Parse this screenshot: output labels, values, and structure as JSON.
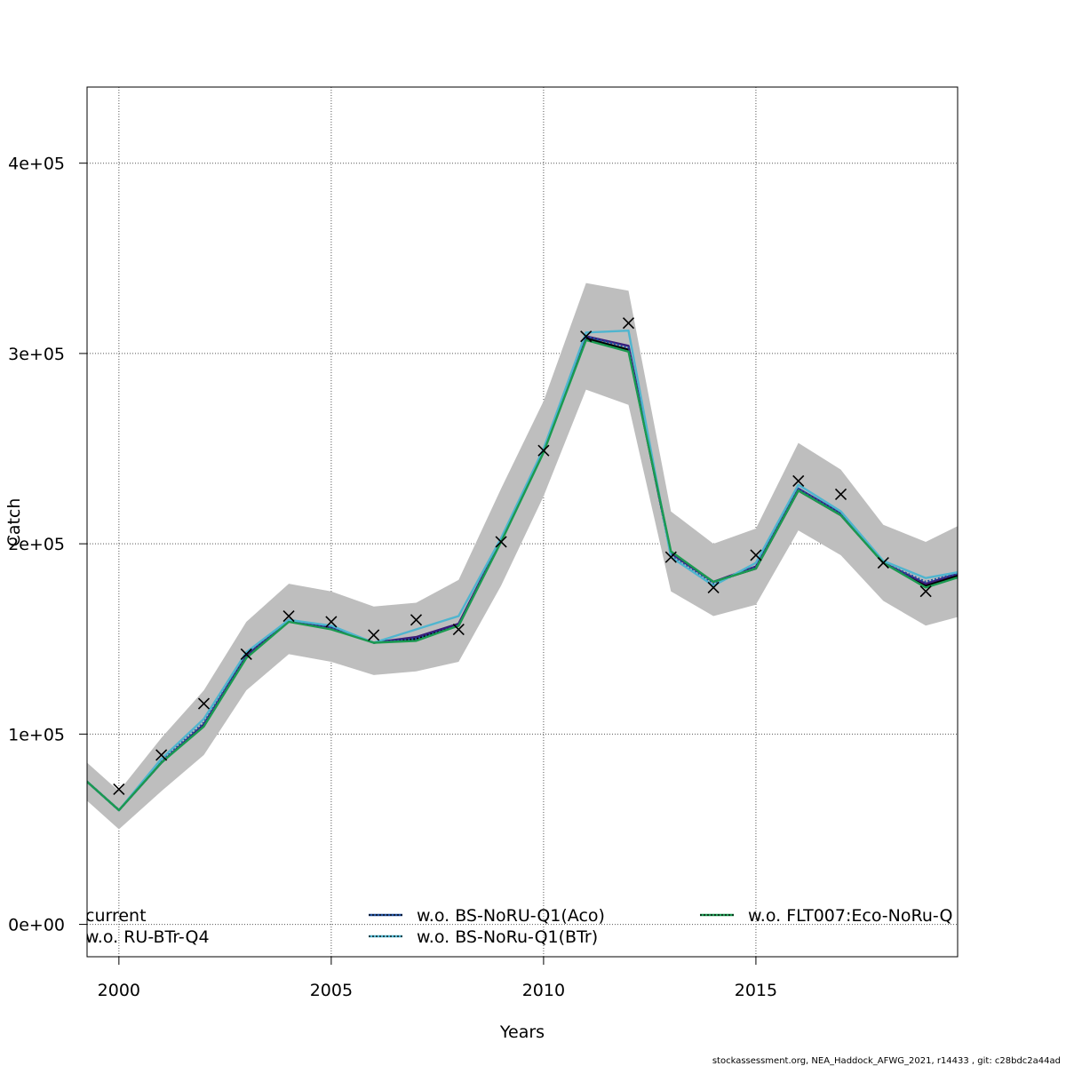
{
  "chart_data": {
    "type": "line",
    "xlabel": "Years",
    "ylabel": "Catch",
    "xlim": [
      1999.25,
      2019.75
    ],
    "ylim": [
      -17000,
      440000
    ],
    "x_ticks": [
      2000,
      2005,
      2010,
      2015
    ],
    "x_tick_labels": [
      "2000",
      "2005",
      "2010",
      "2015"
    ],
    "y_ticks": [
      0,
      100000,
      200000,
      300000,
      400000
    ],
    "y_tick_labels": [
      "0e+00",
      "1e+05",
      "2e+05",
      "3e+05",
      "4e+05"
    ],
    "grid": true,
    "x": [
      1999,
      2000,
      2001,
      2002,
      2003,
      2004,
      2005,
      2006,
      2007,
      2008,
      2009,
      2010,
      2011,
      2012,
      2013,
      2014,
      2015,
      2016,
      2017,
      2018,
      2019,
      2020
    ],
    "confidence_band": {
      "color": "#bebebe",
      "lower": [
        70000,
        50000,
        70000,
        89000,
        123000,
        142000,
        138000,
        131000,
        133000,
        138000,
        178000,
        225000,
        281000,
        273000,
        175000,
        162000,
        168000,
        207000,
        194000,
        170000,
        157000,
        163000
      ],
      "upper": [
        90000,
        70000,
        98000,
        123000,
        159000,
        179000,
        175000,
        167000,
        169000,
        181000,
        229000,
        275000,
        337000,
        333000,
        217000,
        200000,
        208000,
        253000,
        239000,
        210000,
        201000,
        212000
      ]
    },
    "series": [
      {
        "name": "current",
        "color": "#000000",
        "dash": "solid",
        "values": [
          80000,
          60000,
          85000,
          105000,
          141000,
          160000,
          156000,
          148000,
          150000,
          157000,
          202000,
          249000,
          308000,
          302000,
          195000,
          180000,
          187000,
          228000,
          215000,
          190000,
          178000,
          185000
        ]
      },
      {
        "name": "w.o. RU-BTr-Q4",
        "color": "#3a1a7a",
        "dash": "solid",
        "values": [
          80000,
          60000,
          85000,
          105000,
          141000,
          160000,
          156000,
          148000,
          151000,
          158000,
          202000,
          249000,
          309000,
          304000,
          195000,
          180000,
          188000,
          229000,
          216000,
          190000,
          179000,
          186000
        ]
      },
      {
        "name": "w.o. BS-NoRU-Q1(Aco)",
        "color": "#1f4fa0",
        "dash": "dotted",
        "values": [
          80000,
          60000,
          86000,
          106000,
          142000,
          160000,
          156000,
          148000,
          150000,
          157000,
          202000,
          249000,
          309000,
          303000,
          194000,
          179000,
          188000,
          229000,
          216000,
          190000,
          180000,
          186000
        ]
      },
      {
        "name": "w.o. BS-NoRu-Q1(BTr)",
        "color": "#4fb5cf",
        "dash": "solid",
        "values": [
          80000,
          60000,
          87000,
          108000,
          143000,
          160000,
          157000,
          148000,
          155000,
          162000,
          203000,
          250000,
          311000,
          312000,
          193000,
          178000,
          190000,
          231000,
          217000,
          191000,
          182000,
          186000
        ]
      },
      {
        "name": "w.o. FLT007:Eco-NoRu-Q",
        "color": "#1a9a50",
        "dash": "solid",
        "values": [
          80000,
          60000,
          85000,
          104000,
          140000,
          159000,
          155000,
          148000,
          149000,
          157000,
          201000,
          248000,
          307000,
          301000,
          196000,
          180000,
          187000,
          228000,
          215000,
          190000,
          177000,
          184000
        ]
      }
    ],
    "observations": {
      "marker": "x",
      "x": [
        2000,
        2001,
        2002,
        2003,
        2004,
        2005,
        2006,
        2007,
        2008,
        2009,
        2010,
        2011,
        2012,
        2013,
        2014,
        2015,
        2016,
        2017,
        2018,
        2019
      ],
      "y": [
        71000,
        89000,
        116000,
        142000,
        162000,
        159000,
        152000,
        160000,
        155000,
        201000,
        249000,
        309000,
        316000,
        193000,
        177000,
        194000,
        233000,
        226000,
        190000,
        175000
      ]
    },
    "legend": {
      "placement": "bottom, inside plot",
      "entries": [
        {
          "label": "current",
          "series": 0,
          "show_line": false
        },
        {
          "label": "w.o. RU-BTr-Q4",
          "series": 1,
          "show_line": false
        },
        {
          "label": "w.o. BS-NoRU-Q1(Aco)",
          "series": 2,
          "show_line": true
        },
        {
          "label": "w.o. BS-NoRu-Q1(BTr)",
          "series": 3,
          "show_line": true
        },
        {
          "label": "w.o. FLT007:Eco-NoRu-Q",
          "series": 4,
          "show_line": true
        }
      ]
    }
  },
  "footer": "stockassessment.org, NEA_Haddock_AFWG_2021, r14433 , git: c28bdc2a44ad"
}
